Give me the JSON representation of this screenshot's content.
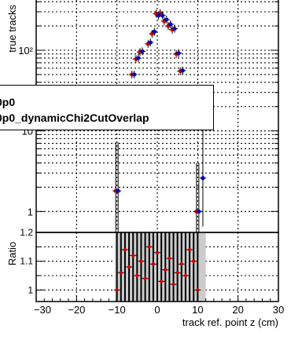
{
  "chart_data": [
    {
      "type": "scatter",
      "panel": "top",
      "ylabel": "true tracks",
      "yscale": "log",
      "ylim": [
        0.55,
        420
      ],
      "xlim": [
        -30,
        30
      ],
      "y_tick_labels": [
        "1",
        "10",
        "10²"
      ],
      "grid": true,
      "legend_placement": "middle-left",
      "series": [
        {
          "name": "0p0",
          "color": "#cc0000",
          "points": [
            {
              "x": -10,
              "y": 1.8
            },
            {
              "x": -6,
              "y": 50
            },
            {
              "x": -5,
              "y": 78
            },
            {
              "x": -4,
              "y": 95
            },
            {
              "x": -2,
              "y": 120
            },
            {
              "x": -1,
              "y": 160
            },
            {
              "x": 0,
              "y": 285
            },
            {
              "x": 1,
              "y": 290
            },
            {
              "x": 2,
              "y": 230
            },
            {
              "x": 3,
              "y": 200
            },
            {
              "x": 4,
              "y": 180
            },
            {
              "x": 5,
              "y": 90
            },
            {
              "x": 6,
              "y": 55
            },
            {
              "x": 10,
              "y": 1.0
            }
          ]
        },
        {
          "name": "0p0_dynamicChi2CutOverlap",
          "color": "#0000cc",
          "points": [
            {
              "x": -10,
              "y": 1.8
            },
            {
              "x": -6,
              "y": 50
            },
            {
              "x": -5,
              "y": 80
            },
            {
              "x": -4,
              "y": 97
            },
            {
              "x": -2,
              "y": 125
            },
            {
              "x": -1,
              "y": 170
            },
            {
              "x": 0,
              "y": 270
            },
            {
              "x": 1,
              "y": 270
            },
            {
              "x": 2,
              "y": 240
            },
            {
              "x": 3,
              "y": 210
            },
            {
              "x": 4,
              "y": 185
            },
            {
              "x": 5,
              "y": 92
            },
            {
              "x": 6,
              "y": 56
            },
            {
              "x": 10,
              "y": 1.0
            },
            {
              "x": 11,
              "y": 2.6
            }
          ]
        }
      ]
    },
    {
      "type": "scatter",
      "panel": "bottom",
      "ylabel": "Ratio",
      "xlabel": "track ref. point z (cm)",
      "xlim": [
        -30,
        30
      ],
      "ylim": [
        0.96,
        1.2
      ],
      "x_tick_labels": [
        "−30",
        "−20",
        "−10",
        "0",
        "10",
        "20",
        "30"
      ],
      "y_tick_labels": [
        "1",
        "1.1",
        "1.2"
      ],
      "grid": true,
      "band_color": "#cccccc",
      "band_range": [
        -10.5,
        12
      ],
      "points": [
        {
          "x": -10,
          "y": 1.0
        },
        {
          "x": -9,
          "y": 1.06
        },
        {
          "x": -8,
          "y": 1.14
        },
        {
          "x": -7,
          "y": 1.08
        },
        {
          "x": -6,
          "y": 1.12
        },
        {
          "x": -5,
          "y": 1.05
        },
        {
          "x": -4,
          "y": 1.1
        },
        {
          "x": -3,
          "y": 1.04
        },
        {
          "x": -2,
          "y": 1.15
        },
        {
          "x": -1,
          "y": 1.09
        },
        {
          "x": 0,
          "y": 1.13
        },
        {
          "x": 1,
          "y": 1.03
        },
        {
          "x": 2,
          "y": 1.07
        },
        {
          "x": 3,
          "y": 1.11
        },
        {
          "x": 4,
          "y": 1.02
        },
        {
          "x": 5,
          "y": 1.06
        },
        {
          "x": 6,
          "y": 1.09
        },
        {
          "x": 7,
          "y": 1.05
        },
        {
          "x": 8,
          "y": 1.14
        },
        {
          "x": 9,
          "y": 1.1
        },
        {
          "x": 10,
          "y": 1.0
        }
      ]
    }
  ]
}
